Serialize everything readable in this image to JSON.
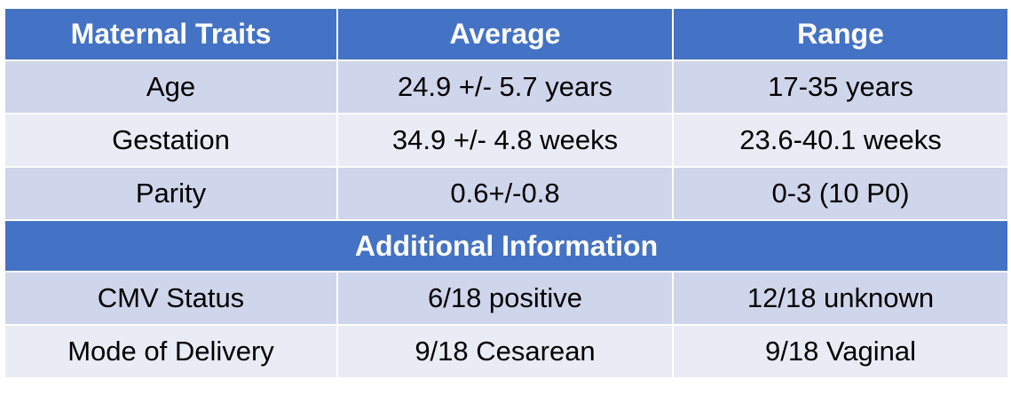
{
  "header": {
    "col1": "Maternal Traits",
    "col2": "Average",
    "col3": "Range"
  },
  "rows": [
    {
      "trait": "Age",
      "average": "24.9 +/- 5.7 years",
      "range": "17-35 years"
    },
    {
      "trait": "Gestation",
      "average": "34.9 +/- 4.8 weeks",
      "range": "23.6-40.1 weeks"
    },
    {
      "trait": "Parity",
      "average": "0.6+/-0.8",
      "range": "0-3 (10 P0)"
    }
  ],
  "section": {
    "title": "Additional Information"
  },
  "additional_rows": [
    {
      "trait": "CMV Status",
      "average": "6/18 positive",
      "range": "12/18 unknown"
    },
    {
      "trait": "Mode of Delivery",
      "average": "9/18 Cesarean",
      "range": "9/18 Vaginal"
    }
  ],
  "colors": {
    "header_bg": "#4472c4",
    "row_dark": "#cfd5ea",
    "row_light": "#e9ebf5"
  }
}
